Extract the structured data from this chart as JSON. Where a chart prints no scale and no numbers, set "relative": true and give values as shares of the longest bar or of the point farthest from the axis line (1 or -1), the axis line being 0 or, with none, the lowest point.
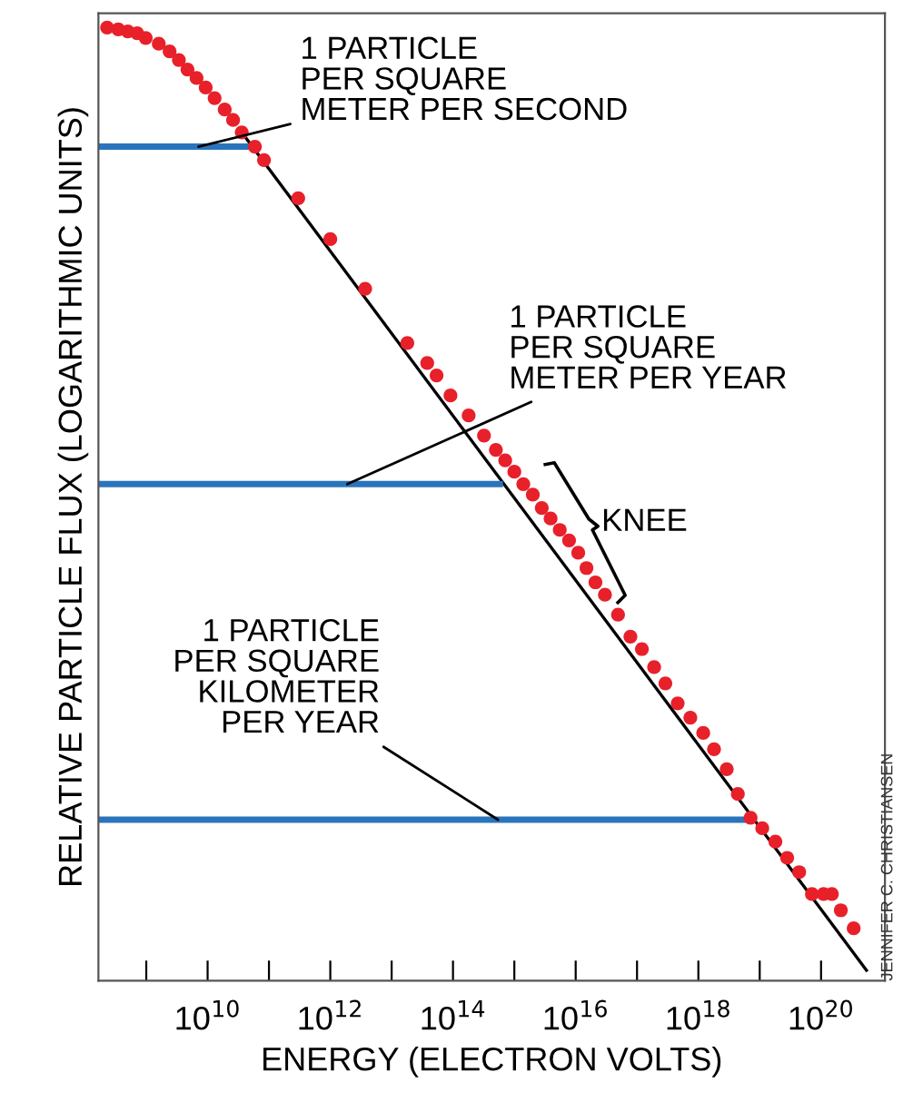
{
  "chart_data": {
    "type": "scatter",
    "relative": true,
    "xlabel": "ENERGY (ELECTRON VOLTS)",
    "ylabel": "RELATIVE PARTICLE FLUX (LOGARITHMIC UNITS)",
    "log": "x",
    "grid": false,
    "xlim": [
      166000000.0,
      1.1e+21
    ],
    "xticks": [
      {
        "value": 1000000000.0,
        "label": null
      },
      {
        "value": 10000000000.0,
        "label": "10$^{10}$"
      },
      {
        "value": 100000000000.0,
        "label": null
      },
      {
        "value": 1000000000000.0,
        "label": "10$^{12}$"
      },
      {
        "value": 10000000000000.0,
        "label": null
      },
      {
        "value": 100000000000000.0,
        "label": "10$^{14}$"
      },
      {
        "value": 1000000000000000.0,
        "label": null
      },
      {
        "value": 1e+16,
        "label": "10$^{16}$"
      },
      {
        "value": 1e+17,
        "label": null
      },
      {
        "value": 1e+18,
        "label": "10$^{18}$"
      },
      {
        "value": 1e+19,
        "label": null
      },
      {
        "value": 1e+20,
        "label": "10$^{20}$"
      }
    ],
    "series": [
      {
        "marker": "circle",
        "color": "#e8202a",
        "x": [
          230000000.0,
          350000000.0,
          500000000.0,
          710000000.0,
          980000000.0,
          1600000000.0,
          2400000000.0,
          3400000000.0,
          4700000000.0,
          6600000000.0,
          9300000000.0,
          13000000000.0,
          19000000000.0,
          26000000000.0,
          36000000000.0,
          59000000000.0,
          83000000000.0,
          300000000000.0,
          1000000000000.0,
          3700000000000.0,
          18000000000000.0,
          38000000000000.0,
          54000000000000.0,
          91000000000000.0,
          180000000000000.0,
          320000000000000.0,
          500000000000000.0,
          710000000000000.0,
          1000000000000000.0,
          1400000000000000.0,
          2000000000000000.0,
          2800000000000000.0,
          3900000000000000.0,
          5500000000000000.0,
          7800000000000000.0,
          1.1e+16,
          1.5e+16,
          2.1e+16,
          3e+16,
          4.9e+16,
          7.8e+16,
          1.2e+17,
          1.9e+17,
          2.9e+17,
          4.6e+17,
          7.4e+17,
          1.2e+18,
          1.8e+18,
          2.9e+18,
          4.4e+18,
          7.1e+18,
          1.1e+19,
          1.8e+19,
          2.8e+19,
          4.4e+19,
          7.1e+19,
          1.1e+20,
          1.5e+20,
          2.1e+20,
          3.4e+20
        ],
        "values": [
          1.0,
          0.998,
          0.996,
          0.994,
          0.989,
          0.983,
          0.975,
          0.966,
          0.956,
          0.947,
          0.937,
          0.926,
          0.914,
          0.903,
          0.89,
          0.875,
          0.861,
          0.821,
          0.778,
          0.726,
          0.669,
          0.648,
          0.635,
          0.614,
          0.593,
          0.572,
          0.557,
          0.546,
          0.534,
          0.521,
          0.51,
          0.496,
          0.485,
          0.473,
          0.462,
          0.449,
          0.433,
          0.418,
          0.405,
          0.384,
          0.361,
          0.348,
          0.329,
          0.312,
          0.291,
          0.276,
          0.26,
          0.243,
          0.222,
          0.196,
          0.171,
          0.16,
          0.146,
          0.129,
          0.114,
          0.091,
          0.091,
          0.091,
          0.074,
          0.055
        ]
      },
      {
        "type": "line",
        "color": "#000000",
        "x": [
          36000000000.0,
          5.5e+20
        ],
        "values": [
          0.89,
          0.011
        ]
      },
      {
        "type": "line",
        "color": "#2a74bb",
        "x": [
          166000000.0,
          59000000000.0
        ],
        "values": [
          0.875,
          0.875
        ]
      },
      {
        "type": "line",
        "color": "#2a74bb",
        "x": [
          166000000.0,
          580000000000000.0
        ],
        "values": [
          0.521,
          0.521
        ]
      },
      {
        "type": "line",
        "color": "#2a74bb",
        "x": [
          166000000.0,
          5.8e+18
        ],
        "values": [
          0.169,
          0.169
        ]
      }
    ],
    "annotations": [
      {
        "text": "1 PARTICLE\nPER SQUARE\nMETER PER SECOND",
        "x": 7100000000.0,
        "y": 0.875
      },
      {
        "text": "1 PARTICLE\nPER SQUARE\nMETER PER YEAR",
        "x": 1900000000000.0,
        "y": 0.521
      },
      {
        "text": "1 PARTICLE\nPER SQUARE\nKILOMETER\nPER YEAR",
        "x": 540000000000000.0,
        "y": 0.169
      },
      {
        "text": "KNEE",
        "x": 5500000000000000.0,
        "y": 0.473
      },
      "JENNIFER C. CHRISTIANSEN"
    ]
  }
}
